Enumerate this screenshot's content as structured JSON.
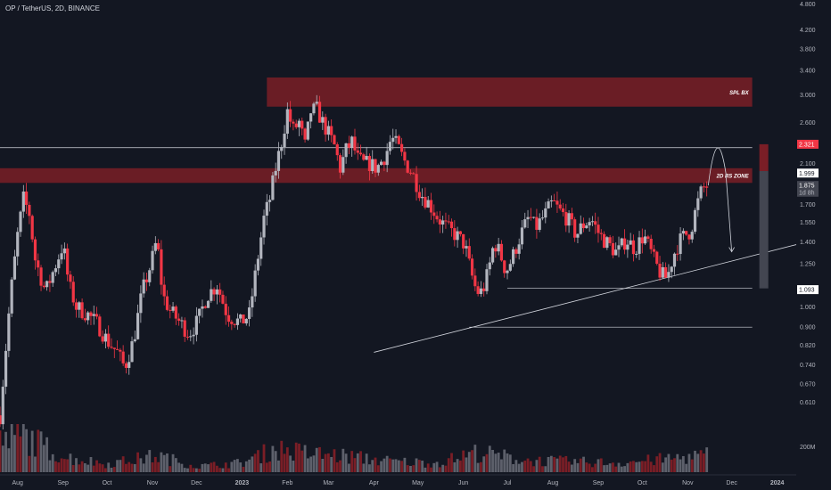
{
  "header": {
    "title": "OP / TetherUS, 2D, BINANCE"
  },
  "colors": {
    "background": "#131722",
    "up": "#b2b5be",
    "down": "#f23645",
    "zone_fill": "#7a1e26",
    "line": "#d1d4dc",
    "axis_text": "#b2b5be"
  },
  "chart_data": {
    "type": "candlestick",
    "title": "OP / TetherUS, 2D, BINANCE",
    "y_scale": "log",
    "ylim": [
      0.56,
      4.9
    ],
    "y_ticks": [
      "4.800",
      "4.200",
      "3.800",
      "3.400",
      "3.000",
      "2.600",
      "2.100",
      "1.700",
      "1.550",
      "1.400",
      "1.250",
      "1.000",
      "0.900",
      "0.820",
      "0.740",
      "0.670",
      "0.610"
    ],
    "x_ticks": [
      "Aug",
      "Sep",
      "Oct",
      "Nov",
      "Dec",
      "2023",
      "Feb",
      "Mar",
      "Apr",
      "May",
      "Jun",
      "Jul",
      "Aug",
      "Sep",
      "Oct",
      "Nov",
      "Dec",
      "2024"
    ],
    "x_range": [
      "2022-07-20",
      "2024-01-14"
    ],
    "price_path": [
      [
        "2022-07-20",
        0.57
      ],
      [
        "2022-07-27",
        1.05
      ],
      [
        "2022-08-01",
        1.45
      ],
      [
        "2022-08-05",
        1.75
      ],
      [
        "2022-08-09",
        1.62
      ],
      [
        "2022-08-13",
        1.28
      ],
      [
        "2022-08-20",
        1.08
      ],
      [
        "2022-08-26",
        1.22
      ],
      [
        "2022-09-01",
        1.38
      ],
      [
        "2022-09-05",
        1.12
      ],
      [
        "2022-09-10",
        1.0
      ],
      [
        "2022-09-18",
        0.96
      ],
      [
        "2022-09-25",
        0.91
      ],
      [
        "2022-10-01",
        0.84
      ],
      [
        "2022-10-08",
        0.79
      ],
      [
        "2022-10-13",
        0.73
      ],
      [
        "2022-10-19",
        0.84
      ],
      [
        "2022-10-25",
        1.08
      ],
      [
        "2022-10-31",
        1.25
      ],
      [
        "2022-11-04",
        1.42
      ],
      [
        "2022-11-08",
        1.06
      ],
      [
        "2022-11-13",
        0.98
      ],
      [
        "2022-11-20",
        0.92
      ],
      [
        "2022-11-26",
        0.87
      ],
      [
        "2022-12-02",
        0.93
      ],
      [
        "2022-12-08",
        1.06
      ],
      [
        "2022-12-15",
        1.12
      ],
      [
        "2022-12-22",
        0.96
      ],
      [
        "2022-12-31",
        0.92
      ],
      [
        "2023-01-06",
        0.96
      ],
      [
        "2023-01-12",
        1.3
      ],
      [
        "2023-01-16",
        1.58
      ],
      [
        "2023-01-20",
        1.75
      ],
      [
        "2023-01-24",
        2.05
      ],
      [
        "2023-01-28",
        2.35
      ],
      [
        "2023-02-01",
        2.75
      ],
      [
        "2023-02-05",
        2.5
      ],
      [
        "2023-02-09",
        2.6
      ],
      [
        "2023-02-13",
        2.3
      ],
      [
        "2023-02-17",
        2.75
      ],
      [
        "2023-02-21",
        2.78
      ],
      [
        "2023-02-25",
        2.6
      ],
      [
        "2023-03-01",
        2.45
      ],
      [
        "2023-03-05",
        2.3
      ],
      [
        "2023-03-09",
        2.05
      ],
      [
        "2023-03-13",
        2.25
      ],
      [
        "2023-03-17",
        2.35
      ],
      [
        "2023-03-21",
        2.15
      ],
      [
        "2023-03-25",
        2.1
      ],
      [
        "2023-03-29",
        2.1
      ],
      [
        "2023-04-03",
        2.05
      ],
      [
        "2023-04-09",
        2.2
      ],
      [
        "2023-04-13",
        2.4
      ],
      [
        "2023-04-17",
        2.3
      ],
      [
        "2023-04-21",
        2.15
      ],
      [
        "2023-04-27",
        2.0
      ],
      [
        "2023-05-03",
        1.8
      ],
      [
        "2023-05-09",
        1.7
      ],
      [
        "2023-05-15",
        1.58
      ],
      [
        "2023-05-21",
        1.5
      ],
      [
        "2023-05-27",
        1.45
      ],
      [
        "2023-06-02",
        1.38
      ],
      [
        "2023-06-06",
        1.2
      ],
      [
        "2023-06-10",
        1.08
      ],
      [
        "2023-06-14",
        1.08
      ],
      [
        "2023-06-18",
        1.2
      ],
      [
        "2023-06-22",
        1.4
      ],
      [
        "2023-06-26",
        1.32
      ],
      [
        "2023-06-30",
        1.2
      ],
      [
        "2023-07-04",
        1.28
      ],
      [
        "2023-07-10",
        1.45
      ],
      [
        "2023-07-16",
        1.6
      ],
      [
        "2023-07-20",
        1.5
      ],
      [
        "2023-07-26",
        1.6
      ],
      [
        "2023-08-01",
        1.72
      ],
      [
        "2023-08-05",
        1.65
      ],
      [
        "2023-08-11",
        1.58
      ],
      [
        "2023-08-17",
        1.45
      ],
      [
        "2023-08-21",
        1.52
      ],
      [
        "2023-08-27",
        1.58
      ],
      [
        "2023-09-02",
        1.45
      ],
      [
        "2023-09-08",
        1.38
      ],
      [
        "2023-09-14",
        1.32
      ],
      [
        "2023-09-20",
        1.42
      ],
      [
        "2023-09-26",
        1.35
      ],
      [
        "2023-10-02",
        1.45
      ],
      [
        "2023-10-06",
        1.35
      ],
      [
        "2023-10-10",
        1.25
      ],
      [
        "2023-10-14",
        1.18
      ],
      [
        "2023-10-18",
        1.16
      ],
      [
        "2023-10-22",
        1.3
      ],
      [
        "2023-10-26",
        1.4
      ],
      [
        "2023-10-30",
        1.45
      ],
      [
        "2023-11-03",
        1.48
      ],
      [
        "2023-11-07",
        1.68
      ],
      [
        "2023-11-11",
        1.85
      ],
      [
        "2023-11-15",
        1.875
      ]
    ],
    "volume": {
      "axis_label": "200M",
      "series": [
        [
          "2022-07-20",
          2.6
        ],
        [
          "2022-08-05",
          3.2
        ],
        [
          "2022-09-01",
          1.3
        ],
        [
          "2022-10-01",
          0.7
        ],
        [
          "2022-11-04",
          1.4
        ],
        [
          "2022-12-01",
          0.5
        ],
        [
          "2023-01-01",
          0.8
        ],
        [
          "2023-01-24",
          2.0
        ],
        [
          "2023-02-15",
          1.6
        ],
        [
          "2023-03-10",
          1.4
        ],
        [
          "2023-04-15",
          0.9
        ],
        [
          "2023-05-15",
          0.8
        ],
        [
          "2023-06-10",
          1.7
        ],
        [
          "2023-07-15",
          1.0
        ],
        [
          "2023-08-15",
          0.9
        ],
        [
          "2023-09-15",
          0.8
        ],
        [
          "2023-10-15",
          1.1
        ],
        [
          "2023-11-15",
          1.5
        ]
      ]
    },
    "annotations": {
      "zones": [
        {
          "label": "SPL BX",
          "from": 2.82,
          "to": 3.28,
          "start": "2023-01-18",
          "end": "2023-12-15"
        },
        {
          "label": "2D RS ZONE",
          "from": 1.9,
          "to": 2.05,
          "start": "2022-07-20",
          "end": "2023-12-15"
        }
      ],
      "h_lines": [
        {
          "y": 2.28,
          "start": "2022-07-20",
          "end": "2023-12-15"
        },
        {
          "y": 1.1,
          "start": "2023-07-01",
          "end": "2023-12-15"
        },
        {
          "y": 0.9,
          "start": "2023-06-05",
          "end": "2023-12-15"
        }
      ],
      "trendline": {
        "from": [
          "2023-04-01",
          0.79
        ],
        "to": [
          "2024-01-14",
          1.38
        ]
      },
      "range_bar": {
        "from": 1.1,
        "to": 2.321,
        "date": "2023-12-15"
      },
      "projection": {
        "points": [
          [
            "2023-11-15",
            1.875
          ],
          [
            "2023-11-21",
            2.22
          ],
          [
            "2023-11-27",
            2.0
          ],
          [
            "2023-12-01",
            1.33
          ]
        ]
      }
    },
    "price_labels": [
      {
        "text": "2.321",
        "value": 2.321,
        "style": "red"
      },
      {
        "text": "1.999",
        "value": 1.999,
        "style": "white"
      },
      {
        "text": "1.875",
        "value": 1.875,
        "style": "gray"
      },
      {
        "text": "1d 8h",
        "value": 1.81,
        "style": "gray-plain"
      },
      {
        "text": "1.093",
        "value": 1.093,
        "style": "white"
      }
    ]
  }
}
